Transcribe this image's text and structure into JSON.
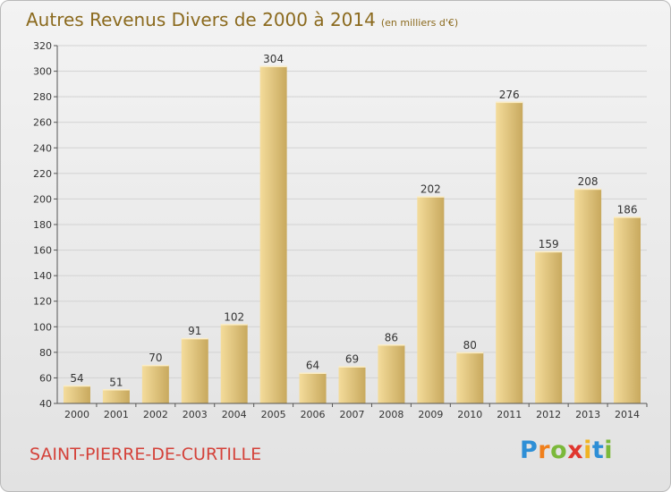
{
  "header": {
    "title": "Autres Revenus Divers de 2000 à 2014",
    "subtitle": "(en milliers d'€)"
  },
  "footer": {
    "commune": "SAINT-PIERRE-DE-CURTILLE",
    "logo_letters": [
      "P",
      "r",
      "o",
      "x",
      "i",
      "t",
      "i"
    ],
    "logo_colors": [
      "#2e8fd6",
      "#f07f1b",
      "#7bb93a",
      "#e0362e",
      "#f0b323",
      "#2e8fd6",
      "#7bb93a"
    ]
  },
  "colors": {
    "bar_light": "#f4dc9b",
    "bar_dark": "#c8a95e",
    "grid": "#d2d2d2",
    "title": "#8b6a1e",
    "commune": "#d4423a"
  },
  "chart_data": {
    "type": "bar",
    "title": "Autres Revenus Divers de 2000 à 2014",
    "subtitle": "(en milliers d'€)",
    "categories": [
      "2000",
      "2001",
      "2002",
      "2003",
      "2004",
      "2005",
      "2006",
      "2007",
      "2008",
      "2009",
      "2010",
      "2011",
      "2012",
      "2013",
      "2014"
    ],
    "values": [
      54,
      51,
      70,
      91,
      102,
      304,
      64,
      69,
      86,
      202,
      80,
      276,
      159,
      208,
      186
    ],
    "ylim": [
      40,
      320
    ],
    "yticks": [
      40,
      60,
      80,
      100,
      120,
      140,
      160,
      180,
      200,
      220,
      240,
      260,
      280,
      300,
      320
    ],
    "grid": true,
    "legend": "none"
  }
}
